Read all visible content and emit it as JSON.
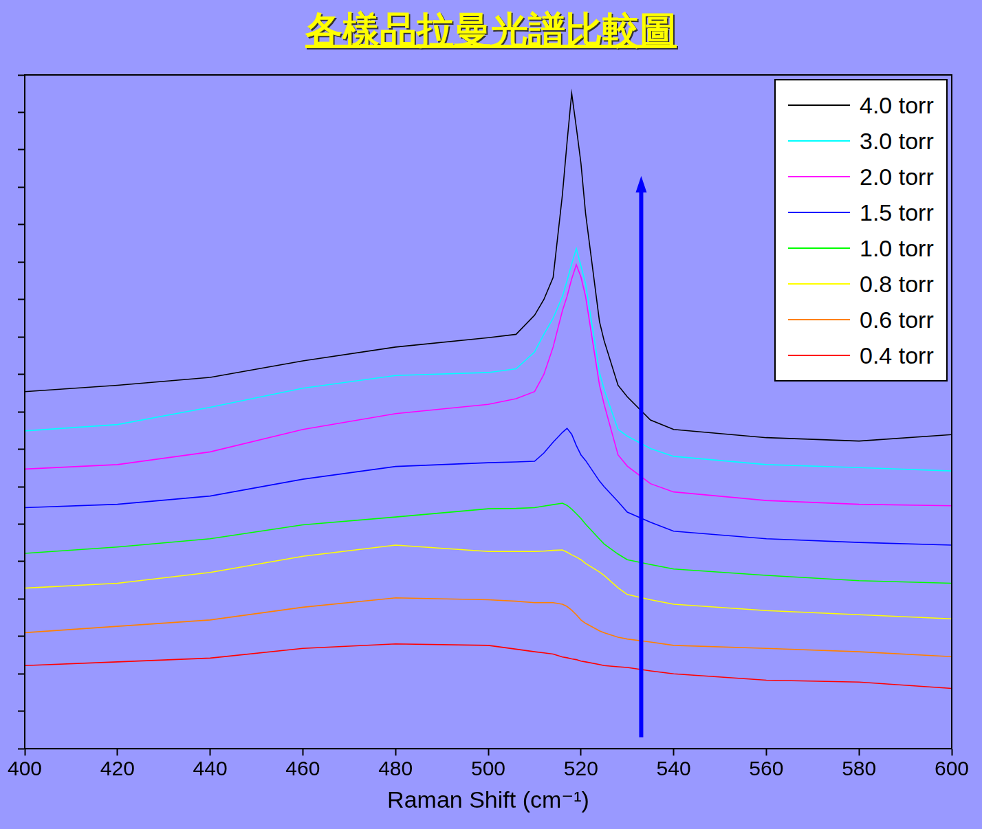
{
  "chart_data": {
    "type": "line",
    "title": "各樣品拉曼光譜比較圖",
    "x_label": "Raman Shift (cm⁻¹)",
    "x": [
      400,
      420,
      440,
      460,
      480,
      500,
      506,
      510,
      512,
      514,
      516,
      517,
      518,
      519,
      520,
      521,
      524,
      525,
      528,
      530,
      535,
      540,
      560,
      580,
      600
    ],
    "series": [
      {
        "name": "4.0 torr",
        "color": "#000000",
        "values": [
          9.54,
          9.71,
          9.92,
          10.36,
          10.73,
          10.98,
          11.07,
          11.58,
          12.0,
          12.59,
          14.8,
          16.2,
          17.51,
          16.6,
          15.64,
          14.3,
          11.41,
          10.9,
          9.71,
          9.4,
          8.78,
          8.53,
          8.31,
          8.22,
          8.39
        ]
      },
      {
        "name": "3.0 torr",
        "color": "#00ffff",
        "values": [
          8.49,
          8.66,
          9.12,
          9.63,
          9.97,
          10.05,
          10.15,
          10.6,
          11.07,
          11.5,
          12.08,
          12.5,
          12.95,
          13.36,
          12.9,
          12.42,
          10.05,
          9.6,
          8.53,
          8.35,
          8.02,
          7.81,
          7.59,
          7.51,
          7.42
        ]
      },
      {
        "name": "2.0 torr",
        "color": "#ff00ff",
        "values": [
          7.47,
          7.59,
          7.93,
          8.53,
          8.95,
          9.2,
          9.35,
          9.54,
          10.0,
          10.73,
          11.7,
          12.08,
          12.55,
          12.93,
          12.6,
          12.08,
          9.71,
          9.2,
          7.85,
          7.55,
          7.08,
          6.86,
          6.63,
          6.53,
          6.49
        ]
      },
      {
        "name": "1.5 torr",
        "color": "#0000ff",
        "values": [
          6.44,
          6.53,
          6.75,
          7.2,
          7.54,
          7.64,
          7.66,
          7.68,
          7.9,
          8.19,
          8.45,
          8.56,
          8.4,
          8.1,
          7.85,
          7.7,
          7.15,
          7.0,
          6.6,
          6.32,
          6.05,
          5.81,
          5.61,
          5.51,
          5.44
        ]
      },
      {
        "name": "1.0 torr",
        "color": "#00ff00",
        "values": [
          5.22,
          5.39,
          5.61,
          5.98,
          6.19,
          6.41,
          6.42,
          6.44,
          6.48,
          6.52,
          6.56,
          6.5,
          6.4,
          6.28,
          6.15,
          6.0,
          5.6,
          5.47,
          5.2,
          5.05,
          4.92,
          4.8,
          4.63,
          4.49,
          4.42
        ]
      },
      {
        "name": "0.8 torr",
        "color": "#ffff00",
        "values": [
          4.29,
          4.42,
          4.71,
          5.14,
          5.44,
          5.27,
          5.27,
          5.27,
          5.28,
          5.3,
          5.31,
          5.25,
          5.18,
          5.12,
          5.05,
          4.95,
          4.72,
          4.63,
          4.3,
          4.12,
          3.98,
          3.86,
          3.69,
          3.58,
          3.47
        ]
      },
      {
        "name": "0.6 torr",
        "color": "#ff8000",
        "values": [
          3.1,
          3.27,
          3.44,
          3.78,
          4.03,
          3.98,
          3.94,
          3.9,
          3.9,
          3.9,
          3.86,
          3.8,
          3.7,
          3.58,
          3.44,
          3.35,
          3.15,
          3.1,
          2.98,
          2.93,
          2.85,
          2.76,
          2.68,
          2.59,
          2.46
        ]
      },
      {
        "name": "0.4 torr",
        "color": "#ff0000",
        "values": [
          2.22,
          2.32,
          2.42,
          2.68,
          2.8,
          2.76,
          2.66,
          2.59,
          2.56,
          2.53,
          2.45,
          2.43,
          2.4,
          2.38,
          2.34,
          2.32,
          2.25,
          2.22,
          2.19,
          2.17,
          2.08,
          2.0,
          1.83,
          1.78,
          1.61
        ]
      }
    ],
    "xlim": [
      400,
      600
    ],
    "xticks": [
      400,
      420,
      440,
      460,
      480,
      500,
      520,
      540,
      560,
      580,
      600
    ],
    "ylim": [
      0,
      18
    ],
    "yticks": [
      0,
      1,
      2,
      3,
      4,
      5,
      6,
      7,
      8,
      9,
      10,
      11,
      12,
      13,
      14,
      15,
      16,
      17,
      18
    ],
    "grid": false,
    "legend": "upper right",
    "tick_labels": "x"
  }
}
